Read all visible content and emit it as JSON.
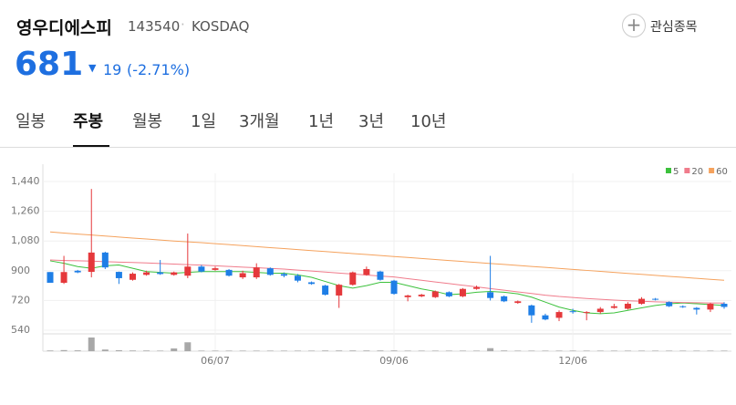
{
  "header": {
    "name": "영우디에스피",
    "code": "143540",
    "market": "KOSDAQ",
    "watch": "관심종목"
  },
  "price": {
    "current": "681",
    "change": "19",
    "change_pct": "(-2.71%)"
  },
  "tabs": {
    "items": [
      "일봉",
      "주봉",
      "월봉",
      "1일",
      "3개월",
      "1년",
      "3년",
      "10년"
    ],
    "selected": 1
  },
  "chart_data": {
    "type": "candlestick",
    "categories": [
      null,
      null,
      null,
      null,
      null,
      null,
      null,
      null,
      null,
      null,
      null,
      null,
      "06/07",
      null,
      null,
      null,
      null,
      null,
      null,
      null,
      null,
      null,
      null,
      null,
      null,
      "09/06",
      null,
      null,
      null,
      null,
      null,
      null,
      null,
      null,
      null,
      null,
      null,
      null,
      "12/06",
      null,
      null,
      null,
      null,
      null,
      null,
      null,
      null,
      null,
      null,
      null
    ],
    "open": [
      892,
      827,
      900,
      893,
      1010,
      893,
      845,
      875,
      890,
      875,
      870,
      925,
      905,
      905,
      860,
      860,
      915,
      880,
      870,
      830,
      810,
      750,
      815,
      875,
      895,
      840,
      740,
      745,
      740,
      770,
      745,
      790,
      770,
      745,
      705,
      690,
      630,
      615,
      655,
      645,
      650,
      675,
      670,
      700,
      730,
      710,
      685,
      675,
      665,
      700
    ],
    "close": [
      827,
      892,
      890,
      1010,
      920,
      855,
      882,
      890,
      880,
      890,
      925,
      895,
      915,
      870,
      885,
      920,
      875,
      870,
      840,
      820,
      755,
      815,
      890,
      910,
      845,
      760,
      750,
      755,
      775,
      745,
      790,
      800,
      735,
      715,
      715,
      630,
      605,
      650,
      650,
      650,
      670,
      685,
      700,
      730,
      725,
      685,
      680,
      665,
      700,
      681
    ],
    "high": [
      892,
      990,
      905,
      1395,
      1015,
      895,
      890,
      900,
      965,
      895,
      1125,
      935,
      925,
      910,
      900,
      945,
      920,
      890,
      880,
      835,
      815,
      820,
      895,
      925,
      900,
      845,
      755,
      760,
      780,
      775,
      795,
      810,
      990,
      750,
      720,
      695,
      640,
      660,
      670,
      655,
      680,
      700,
      710,
      740,
      735,
      715,
      690,
      680,
      705,
      710
    ],
    "low": [
      827,
      820,
      885,
      860,
      910,
      820,
      840,
      870,
      875,
      870,
      855,
      890,
      900,
      865,
      850,
      850,
      870,
      860,
      830,
      815,
      750,
      675,
      810,
      870,
      840,
      755,
      715,
      740,
      735,
      740,
      740,
      785,
      720,
      710,
      700,
      585,
      600,
      595,
      640,
      600,
      640,
      670,
      665,
      695,
      720,
      680,
      675,
      635,
      650,
      670
    ],
    "up_color": "#e5383b",
    "down_color": "#1e7ee6",
    "ylim": [
      540,
      1440
    ],
    "yticks": [
      {
        "value": 1440,
        "label": "1,440"
      },
      {
        "value": 1260,
        "label": "1,260"
      },
      {
        "value": 1080,
        "label": "1,080"
      },
      900,
      720,
      540
    ],
    "grid": true,
    "moving_averages": [
      {
        "name": "5",
        "color": "#3cc13c",
        "values": [
          960,
          945,
          925,
          915,
          930,
          935,
          915,
          895,
          890,
          885,
          890,
          895,
          895,
          895,
          895,
          890,
          885,
          885,
          875,
          860,
          835,
          810,
          795,
          810,
          830,
          830,
          810,
          790,
          775,
          755,
          760,
          770,
          775,
          770,
          760,
          740,
          710,
          680,
          660,
          645,
          640,
          645,
          660,
          675,
          690,
          700,
          705,
          700,
          695,
          690
        ]
      },
      {
        "name": "20",
        "color": "#f07c8c",
        "values": [
          965,
          962,
          960,
          958,
          955,
          952,
          950,
          947,
          944,
          940,
          937,
          934,
          930,
          926,
          922,
          918,
          914,
          910,
          904,
          898,
          892,
          886,
          880,
          874,
          868,
          862,
          852,
          842,
          832,
          822,
          812,
          802,
          792,
          782,
          772,
          762,
          752,
          744,
          738,
          732,
          727,
          722,
          718,
          715,
          712,
          710,
          708,
          706,
          705,
          704
        ]
      },
      {
        "name": "60",
        "color": "#f5a25d",
        "values": [
          1135,
          1128,
          1122,
          1116,
          1110,
          1104,
          1098,
          1092,
          1086,
          1080,
          1075,
          1070,
          1064,
          1058,
          1052,
          1046,
          1040,
          1034,
          1028,
          1022,
          1016,
          1010,
          1004,
          998,
          992,
          986,
          980,
          974,
          968,
          962,
          956,
          950,
          944,
          938,
          932,
          926,
          920,
          914,
          908,
          902,
          896,
          890,
          884,
          878,
          872,
          866,
          860,
          854,
          848,
          842
        ]
      }
    ],
    "legend": "top-right",
    "volume": {
      "color": "#a8a8a8",
      "ylim": [
        0,
        100
      ],
      "values": [
        5,
        8,
        6,
        100,
        12,
        7,
        5,
        5,
        4,
        20,
        65,
        4,
        4,
        4,
        4,
        4,
        4,
        4,
        4,
        4,
        5,
        5,
        5,
        5,
        5,
        5,
        4,
        4,
        4,
        4,
        4,
        4,
        22,
        5,
        4,
        4,
        4,
        4,
        4,
        4,
        4,
        4,
        4,
        4,
        4,
        4,
        4,
        4,
        4,
        4
      ]
    }
  }
}
